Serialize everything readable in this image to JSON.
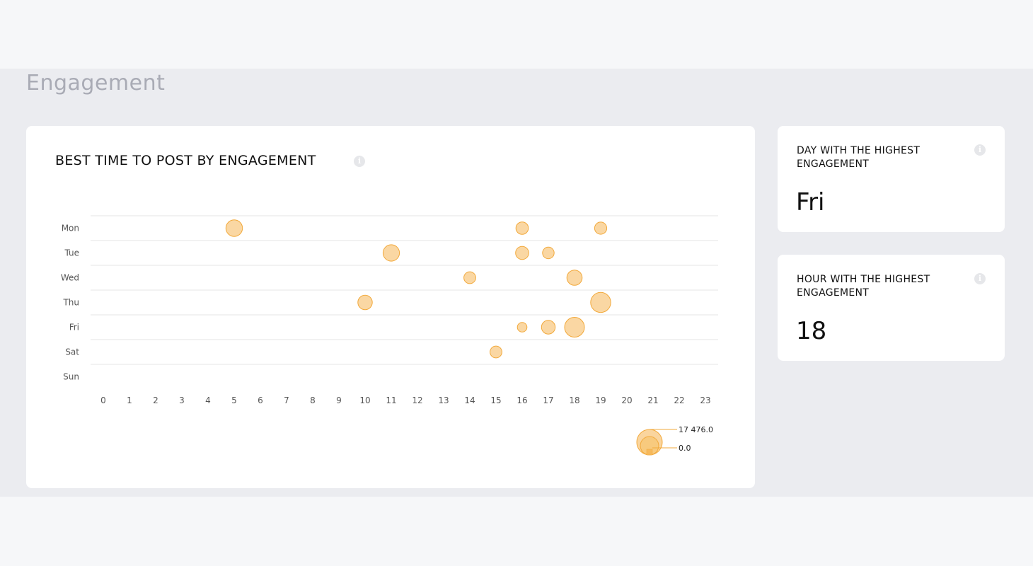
{
  "page": {
    "title": "Engagement"
  },
  "chart_card": {
    "title": "BEST TIME TO POST BY ENGAGEMENT",
    "info_icon": "info-icon"
  },
  "stats": [
    {
      "label": "DAY WITH THE HIGHEST ENGAGEMENT",
      "value": "Fri",
      "info_icon": "info-icon"
    },
    {
      "label": "HOUR WITH THE HIGHEST ENGAGEMENT",
      "value": "18",
      "info_icon": "info-icon"
    }
  ],
  "chart_data": {
    "type": "scatter",
    "title": "BEST TIME TO POST BY ENGAGEMENT",
    "categories": [
      "Mon",
      "Tue",
      "Wed",
      "Thu",
      "Fri",
      "Sat",
      "Sun"
    ],
    "x": [
      0,
      1,
      2,
      3,
      4,
      5,
      6,
      7,
      8,
      9,
      10,
      11,
      12,
      13,
      14,
      15,
      16,
      17,
      18,
      19,
      20,
      21,
      22,
      23
    ],
    "points": [
      {
        "day": "Mon",
        "hour": 5,
        "value": 7400
      },
      {
        "day": "Mon",
        "hour": 16,
        "value": 4200
      },
      {
        "day": "Mon",
        "hour": 19,
        "value": 4000
      },
      {
        "day": "Tue",
        "hour": 11,
        "value": 7200
      },
      {
        "day": "Tue",
        "hour": 16,
        "value": 4700
      },
      {
        "day": "Tue",
        "hour": 17,
        "value": 3600
      },
      {
        "day": "Wed",
        "hour": 14,
        "value": 3800
      },
      {
        "day": "Wed",
        "hour": 18,
        "value": 6300
      },
      {
        "day": "Thu",
        "hour": 10,
        "value": 5600
      },
      {
        "day": "Thu",
        "hour": 19,
        "value": 10800
      },
      {
        "day": "Fri",
        "hour": 16,
        "value": 2500
      },
      {
        "day": "Fri",
        "hour": 17,
        "value": 5100
      },
      {
        "day": "Fri",
        "hour": 18,
        "value": 10600
      },
      {
        "day": "Sat",
        "hour": 15,
        "value": 3800
      }
    ],
    "legend": {
      "max_label": "17 476.0",
      "min_label": "0.0",
      "max": 17476.0,
      "min": 0.0,
      "position": "bottom-right"
    },
    "grid": true,
    "colors": {
      "fill": "#fad59e",
      "stroke": "#f2a93b",
      "grid": "#e4e4e4",
      "label": "#555555"
    }
  }
}
